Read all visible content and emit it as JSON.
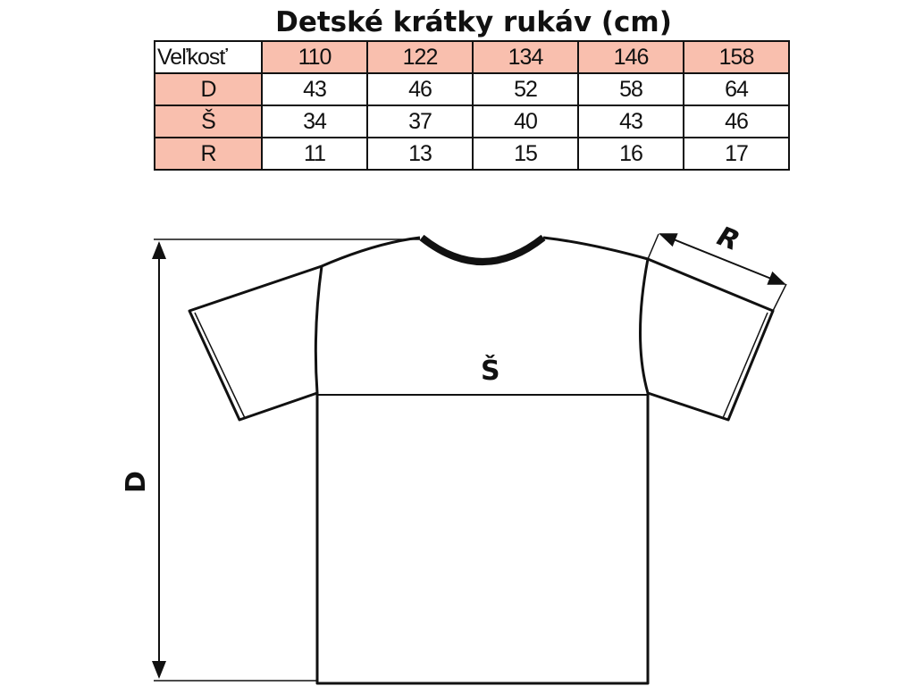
{
  "title": "Detské krátky rukáv (cm)",
  "table": {
    "header_label": "Veľkosť",
    "sizes": [
      "110",
      "122",
      "134",
      "146",
      "158"
    ],
    "rows": [
      {
        "label": "D",
        "values": [
          "43",
          "46",
          "52",
          "58",
          "64"
        ]
      },
      {
        "label": "Š",
        "values": [
          "34",
          "37",
          "40",
          "43",
          "46"
        ]
      },
      {
        "label": "R",
        "values": [
          "11",
          "13",
          "15",
          "16",
          "17"
        ]
      }
    ]
  },
  "diagram": {
    "length_label": "D",
    "width_label": "Š",
    "sleeve_label": "R"
  },
  "colors": {
    "header_fill": "#f9bfae",
    "line": "#111111"
  }
}
